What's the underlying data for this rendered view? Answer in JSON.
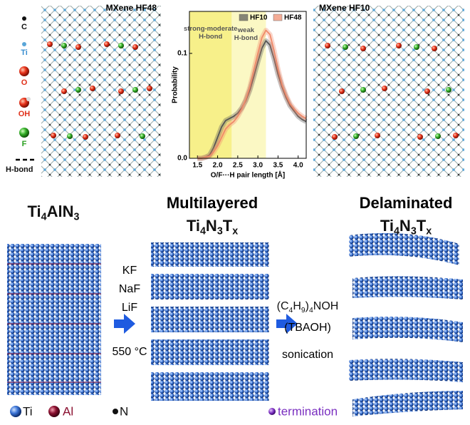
{
  "top": {
    "left_panel": {
      "title": "MXene HF48"
    },
    "right_panel": {
      "title": "MXene HF10"
    },
    "legend": [
      "C",
      "Ti",
      "O",
      "OH",
      "F",
      "H-bond"
    ]
  },
  "chart_data": {
    "type": "line",
    "x_label": "O/F···H pair length [Å]",
    "y_label": "Probability",
    "xlim": [
      1.3,
      4.2
    ],
    "ylim": [
      0,
      0.14
    ],
    "xticks": [
      1.5,
      {
        "value": 2,
        "label": "2.0"
      },
      2.5,
      {
        "value": 3,
        "label": "3.0"
      },
      3.5,
      {
        "value": 4,
        "label": "4.0"
      }
    ],
    "yticks": [
      {
        "value": 0,
        "label": "0.0"
      },
      0.1
    ],
    "regions": [
      {
        "label": "strong-moderate H-bond",
        "xrange": [
          1.3,
          2.35
        ],
        "color": "#f7f08a"
      },
      {
        "label": "weak H-bond",
        "xrange": [
          2.35,
          3.2
        ],
        "color": "#fbf8c4"
      }
    ],
    "x": [
      1.5,
      1.6,
      1.7,
      1.8,
      1.9,
      2.0,
      2.1,
      2.2,
      2.3,
      2.4,
      2.5,
      2.6,
      2.7,
      2.8,
      2.9,
      3.0,
      3.1,
      3.2,
      3.3,
      3.4,
      3.5,
      3.6,
      3.7,
      3.8,
      3.9,
      4.0,
      4.1,
      4.2
    ],
    "series": [
      {
        "name": "HF10",
        "color": "#555555",
        "values": [
          0,
          0,
          0.001,
          0.003,
          0.01,
          0.02,
          0.03,
          0.036,
          0.038,
          0.04,
          0.043,
          0.048,
          0.055,
          0.065,
          0.078,
          0.092,
          0.105,
          0.112,
          0.108,
          0.095,
          0.08,
          0.068,
          0.058,
          0.05,
          0.045,
          0.04,
          0.037,
          0.035
        ]
      },
      {
        "name": "HF48",
        "color": "#f08a6a",
        "values": [
          0,
          0,
          0.001,
          0.002,
          0.006,
          0.012,
          0.02,
          0.028,
          0.032,
          0.035,
          0.04,
          0.047,
          0.056,
          0.068,
          0.084,
          0.1,
          0.115,
          0.122,
          0.118,
          0.103,
          0.085,
          0.07,
          0.06,
          0.052,
          0.047,
          0.043,
          0.04,
          0.038
        ]
      }
    ]
  },
  "bottom": {
    "stages": [
      {
        "parts": [
          "Ti",
          "4",
          "AlN",
          "3"
        ]
      },
      {
        "title": "Multilayered",
        "parts": [
          "Ti",
          "4",
          "N",
          "3",
          "T",
          "x"
        ]
      },
      {
        "title": "Delaminated",
        "parts": [
          "Ti",
          "4",
          "N",
          "3",
          "T",
          "x"
        ]
      }
    ],
    "step1": [
      "KF",
      "NaF",
      "LiF",
      "550 °C"
    ],
    "step2": {
      "parts": [
        "(C",
        "4",
        "H",
        "9",
        ")",
        "4",
        "NOH"
      ],
      "lines": [
        "(TBAOH)",
        "sonication"
      ]
    },
    "legend": [
      "Ti",
      "Al",
      "N",
      "termination"
    ]
  }
}
